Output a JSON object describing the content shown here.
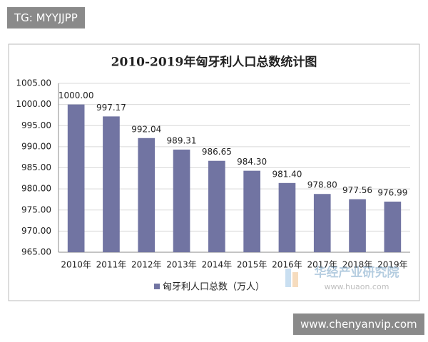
{
  "chart_data": {
    "type": "bar",
    "title": "2010-2019年匈牙利人口总数统计图",
    "categories": [
      "2010年",
      "2011年",
      "2012年",
      "2013年",
      "2014年",
      "2015年",
      "2016年",
      "2017年",
      "2018年",
      "2019年"
    ],
    "series": [
      {
        "name": "匈牙利人口总数（万人）",
        "color": "#7174a2",
        "values": [
          1000,
          997.17,
          992.04,
          989.31,
          986.65,
          984.3,
          981.4,
          978.8,
          977.56,
          976.99
        ],
        "value_labels": [
          "1000.00",
          "997.17",
          "992.04",
          "989.31",
          "986.65",
          "984.30",
          "981.40",
          "978.80",
          "977.56",
          "976.99"
        ]
      }
    ],
    "ylim": [
      965,
      1005
    ],
    "yticks": [
      {
        "value": 965,
        "label": "965.00"
      },
      {
        "value": 970,
        "label": "970.00"
      },
      {
        "value": 975,
        "label": "975.00"
      },
      {
        "value": 980,
        "label": "980.00"
      },
      {
        "value": 985,
        "label": "985.00"
      },
      {
        "value": 990,
        "label": "990.00"
      },
      {
        "value": 995,
        "label": "995.00"
      },
      {
        "value": 1000,
        "label": "1000.00"
      },
      {
        "value": 1005,
        "label": "1005.00"
      }
    ],
    "grid": true,
    "legend": "bottom"
  },
  "overlays": {
    "top_tag": "TG: MYYJJPP",
    "bottom_tag": "www.chenyanvip.com",
    "watermark_name": "华经产业研究院",
    "watermark_url": "www.huaon.com"
  }
}
